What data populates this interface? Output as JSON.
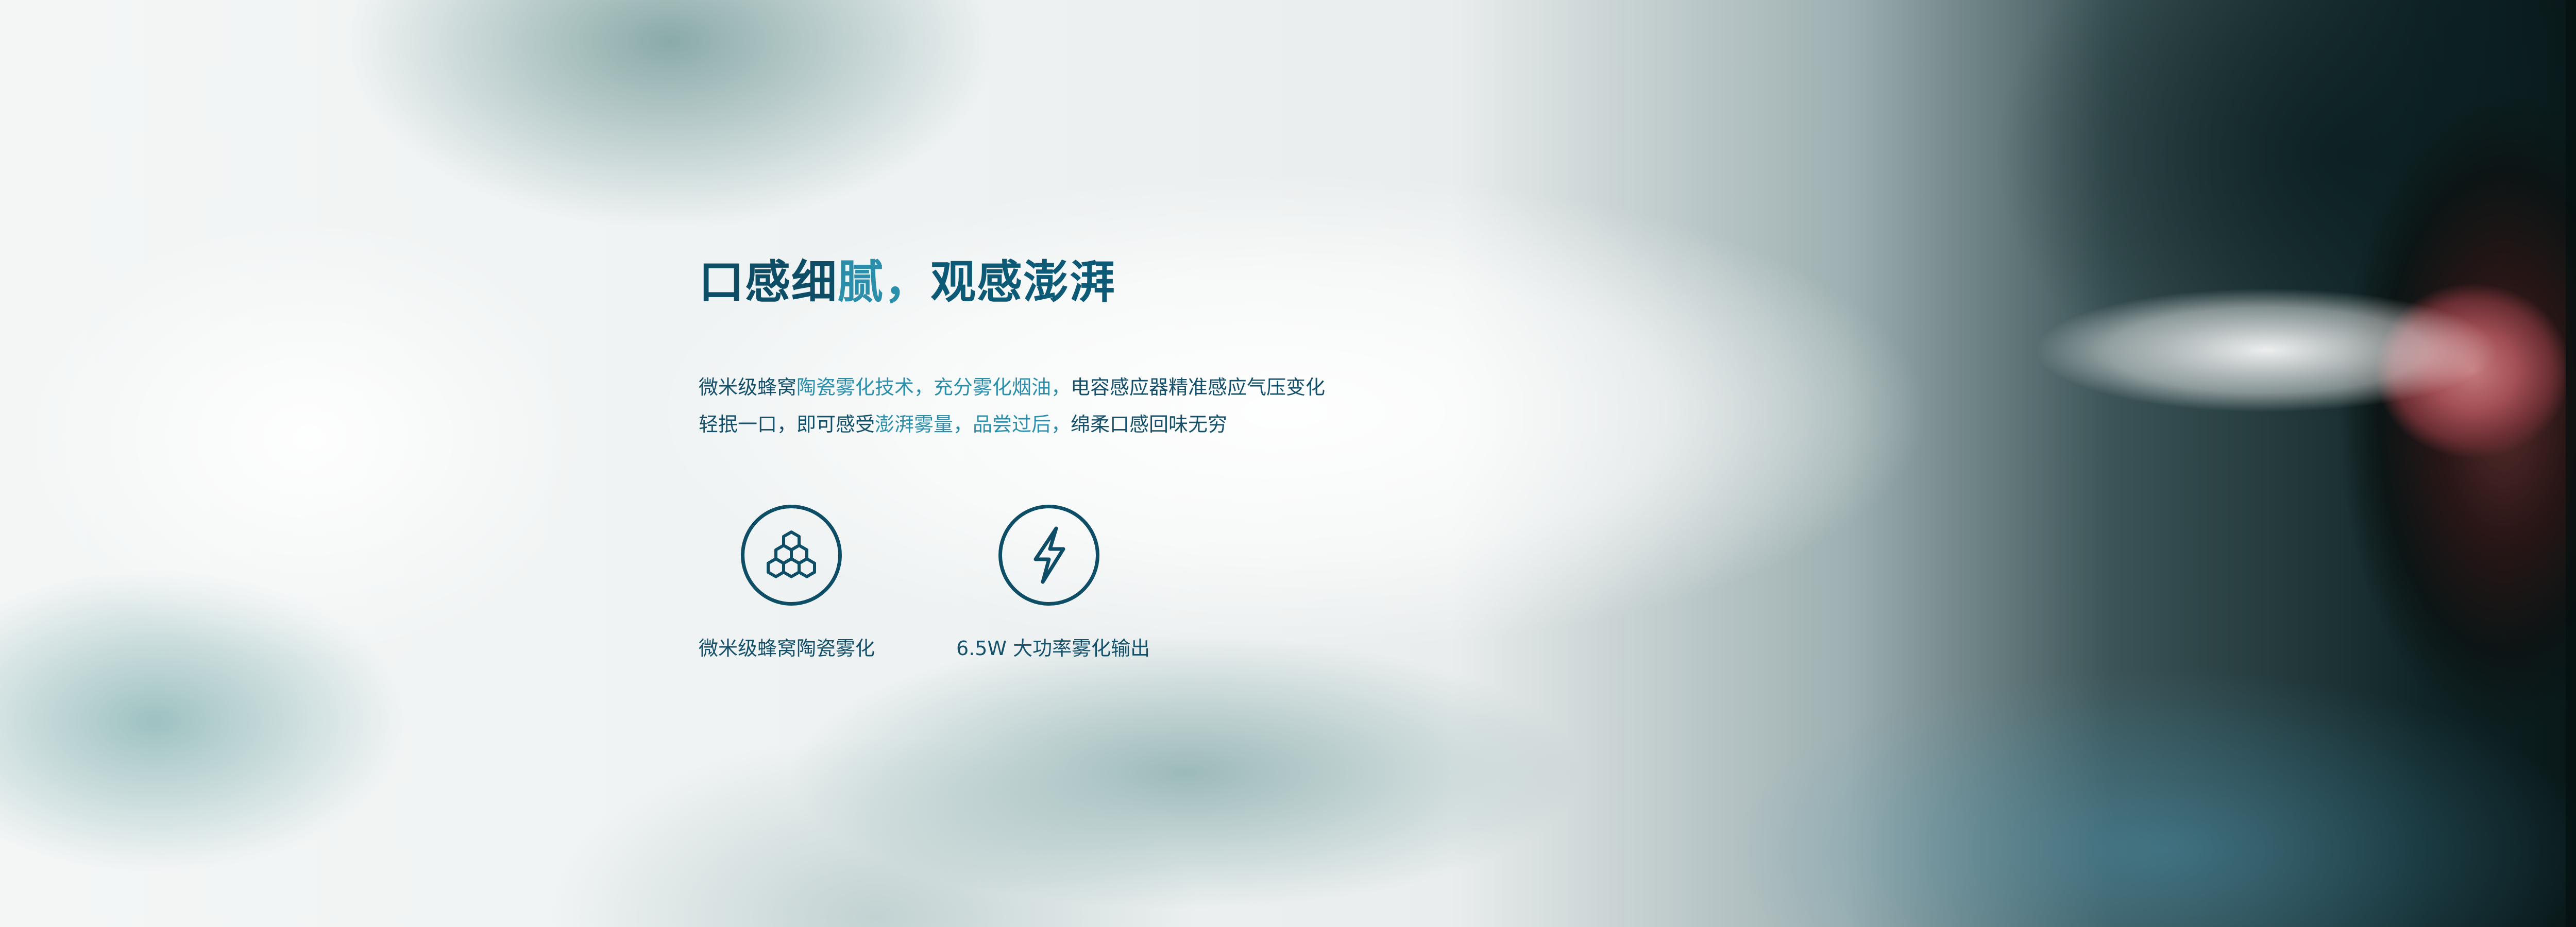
{
  "headline": {
    "part1": "口感细",
    "part2": "腻，",
    "part3": "观感澎湃"
  },
  "description": {
    "line1_a": "微米级蜂窝",
    "line1_b": "陶瓷雾化技术，充分雾化烟油，",
    "line1_c": "电容感应器精准感应气压变化",
    "line2_a": "轻抿一口，即可感受",
    "line2_b": "澎湃雾量，品尝过后，",
    "line2_c": "绵柔口感回味无穷"
  },
  "features": [
    {
      "icon": "honeycomb-icon",
      "label": "微米级蜂窝陶瓷雾化"
    },
    {
      "icon": "lightning-icon",
      "label": "6.5W 大功率雾化输出"
    }
  ],
  "colors": {
    "primary": "#0d4d66",
    "accent": "#2b8fab"
  }
}
